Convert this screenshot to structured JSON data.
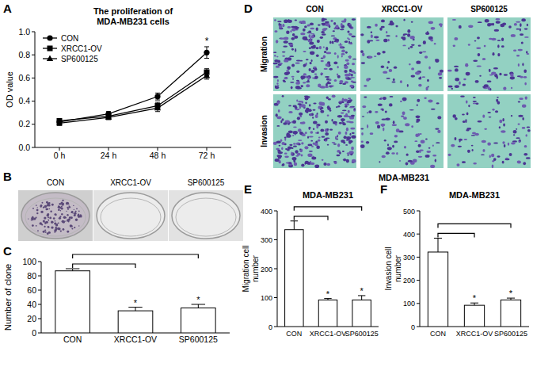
{
  "chart_data": [
    {
      "panel": "A",
      "type": "line",
      "title": "The proliferation of MDA-MB231 cells",
      "y_label": "OD value",
      "categories": [
        "0 h",
        "24 h",
        "48 h",
        "72 h"
      ],
      "ylim": [
        0,
        1
      ],
      "yticks": [
        {
          "value": 0,
          "label": "0.0"
        },
        0.2,
        0.4,
        0.6,
        0.8,
        {
          "value": 1,
          "label": "1.0"
        }
      ],
      "legend": "top-left",
      "annotations": [
        null,
        null,
        null,
        "*"
      ],
      "series": [
        {
          "name": "CON",
          "color": "#000000",
          "marker": "circle",
          "values": [
            0.22,
            0.29,
            0.44,
            0.82
          ],
          "errors": [
            0.02,
            0.02,
            0.03,
            0.05
          ]
        },
        {
          "name": "XRCC1-OV",
          "color": "#000000",
          "marker": "square",
          "values": [
            0.23,
            0.27,
            0.36,
            0.65
          ],
          "errors": [
            0.02,
            0.02,
            0.03,
            0.03
          ]
        },
        {
          "name": "SP600125",
          "color": "#000000",
          "marker": "triangle",
          "values": [
            0.21,
            0.26,
            0.34,
            0.62
          ],
          "errors": [
            0.02,
            0.02,
            0.03,
            0.03
          ]
        }
      ]
    },
    {
      "panel": "C",
      "type": "bar",
      "y_label": "Number of clone",
      "categories": [
        "CON",
        "XRCC1-OV",
        "SP600125"
      ],
      "values": [
        87,
        31,
        35
      ],
      "errors": [
        3,
        5,
        5
      ],
      "color": "#ffffff",
      "ylim": [
        0,
        100
      ],
      "yticks": [
        0,
        20,
        40,
        60,
        80,
        100
      ],
      "annotations": [
        null,
        "*",
        "*"
      ]
    },
    {
      "panel": "E",
      "type": "bar",
      "title": "MDA-MB231",
      "y_label": "Migration cell number",
      "categories": [
        "CON",
        "XRCC1-OV",
        "SP600125"
      ],
      "values": [
        335,
        92,
        92
      ],
      "errors": [
        30,
        5,
        15
      ],
      "color": "#ffffff",
      "ylim": [
        0,
        400
      ],
      "yticks": [
        0,
        100,
        200,
        300,
        400
      ],
      "annotations": [
        null,
        "*",
        "*"
      ]
    },
    {
      "panel": "F",
      "type": "bar",
      "title": "MDA-MB231",
      "y_label": "Invasion cell number",
      "categories": [
        "CON",
        "XRCC1-OV",
        "SP600125"
      ],
      "values": [
        322,
        92,
        115
      ],
      "errors": [
        60,
        10,
        8
      ],
      "color": "#ffffff",
      "ylim": [
        0,
        500
      ],
      "yticks": [
        0,
        100,
        200,
        300,
        400,
        500
      ],
      "annotations": [
        null,
        "*",
        "*"
      ]
    }
  ],
  "images": [
    {
      "panel": "B",
      "labels": [
        "CON",
        "XRCC1-OV",
        "SP600125"
      ]
    },
    {
      "panel": "D",
      "labels": [
        "CON",
        "XRCC1-OV",
        "SP600125"
      ],
      "rows": [
        "Migration",
        "Invasion"
      ],
      "caption": "MDA-MB231"
    }
  ]
}
